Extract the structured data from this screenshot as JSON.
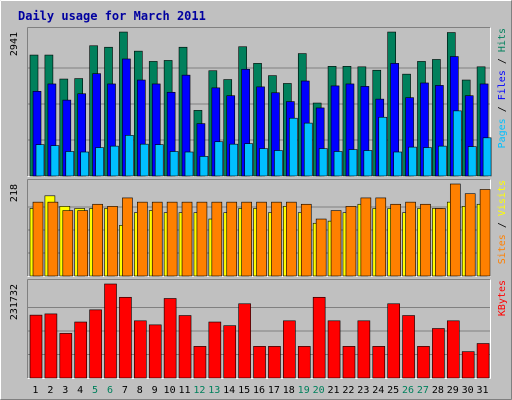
{
  "title": "Daily usage for March 2011",
  "colors": {
    "background": "#C0C0C0",
    "title": "#0000A0",
    "hits": "#00805C",
    "files": "#0000FF",
    "pages": "#00C0FF",
    "visits": "#FFFF00",
    "sites": "#FF8000",
    "kbytes": "#FF0000",
    "axis_label": "#000000",
    "weekend_label": "#00805C"
  },
  "chart_data": [
    {
      "type": "bar",
      "panel": "hits-files-pages",
      "ymax_label": "2941",
      "ymax": 2941,
      "legend": [
        "Pages",
        "Files",
        "Hits"
      ],
      "categories": [
        "1",
        "2",
        "3",
        "4",
        "5",
        "6",
        "7",
        "8",
        "9",
        "10",
        "11",
        "12",
        "13",
        "14",
        "15",
        "16",
        "17",
        "18",
        "19",
        "20",
        "21",
        "22",
        "23",
        "24",
        "25",
        "26",
        "27",
        "28",
        "29",
        "30",
        "31"
      ],
      "series": [
        {
          "name": "Hits",
          "values": [
            2470,
            2470,
            1980,
            1990,
            2660,
            2630,
            2940,
            2550,
            2340,
            2360,
            2630,
            1340,
            2150,
            1970,
            2640,
            2300,
            2050,
            1890,
            2500,
            1490,
            2240,
            2240,
            2230,
            2160,
            2940,
            2080,
            2340,
            2380,
            2930,
            1960,
            2230
          ]
        },
        {
          "name": "Files",
          "values": [
            1730,
            1880,
            1550,
            1680,
            2090,
            1880,
            2390,
            1960,
            1880,
            1710,
            2060,
            1070,
            1800,
            1640,
            2180,
            1820,
            1700,
            1520,
            1940,
            1390,
            1840,
            1880,
            1830,
            1570,
            2300,
            1600,
            1900,
            1850,
            2440,
            1640,
            1880
          ]
        },
        {
          "name": "Pages",
          "values": [
            640,
            620,
            500,
            490,
            580,
            610,
            830,
            650,
            640,
            500,
            490,
            400,
            700,
            650,
            660,
            560,
            520,
            1180,
            1080,
            560,
            500,
            540,
            520,
            1200,
            490,
            590,
            580,
            610,
            1330,
            600,
            780
          ]
        }
      ]
    },
    {
      "type": "bar",
      "panel": "visits-sites",
      "ymax_label": "218",
      "ymax": 218,
      "legend": [
        "Sites",
        "Visits"
      ],
      "series": [
        {
          "name": "Visits",
          "values": [
            160,
            190,
            165,
            160,
            160,
            160,
            120,
            150,
            155,
            150,
            150,
            150,
            135,
            150,
            160,
            160,
            150,
            165,
            150,
            125,
            130,
            150,
            170,
            160,
            160,
            150,
            160,
            160,
            175,
            165,
            170
          ]
        },
        {
          "name": "Sites",
          "values": [
            175,
            175,
            155,
            155,
            170,
            165,
            185,
            175,
            175,
            175,
            175,
            175,
            175,
            175,
            175,
            175,
            175,
            175,
            170,
            135,
            155,
            165,
            185,
            185,
            170,
            175,
            170,
            160,
            218,
            195,
            205
          ]
        }
      ]
    },
    {
      "type": "bar",
      "panel": "kbytes",
      "ymax_label": "231732",
      "ymax": 231732,
      "legend": [
        "KBytes"
      ],
      "series": [
        {
          "name": "KBytes",
          "values": [
            155000,
            158000,
            110000,
            138000,
            168000,
            231732,
            199000,
            141000,
            131000,
            196000,
            154000,
            78000,
            138000,
            129000,
            183000,
            78000,
            78000,
            141000,
            78000,
            199000,
            141000,
            78000,
            141000,
            78000,
            183000,
            154000,
            78000,
            122000,
            141000,
            65000,
            85000
          ]
        }
      ]
    }
  ]
}
